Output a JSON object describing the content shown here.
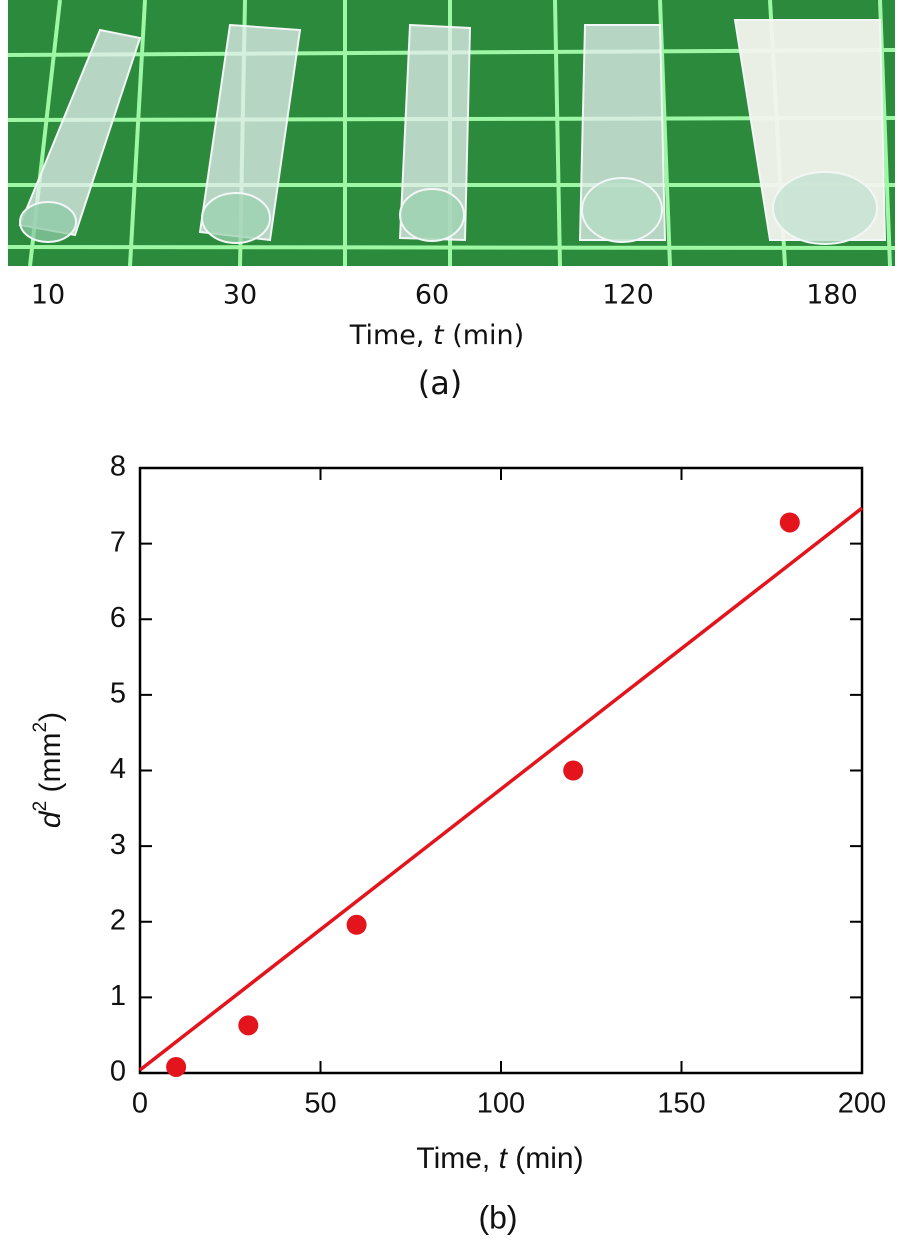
{
  "photo": {
    "labels": [
      "10",
      "30",
      "60",
      "120",
      "180"
    ],
    "x_label_parts": [
      "Time, ",
      "t",
      " (min)"
    ],
    "caption": "(a)"
  },
  "chart_data": {
    "type": "scatter",
    "x": [
      10,
      30,
      60,
      120,
      180
    ],
    "values": [
      0.08,
      0.63,
      1.96,
      4.0,
      7.28
    ],
    "color": "#e3141b",
    "fit_line": {
      "x": [
        0,
        200
      ],
      "values": [
        0.04,
        7.47
      ],
      "color": "#e3141b"
    },
    "xlim": [
      0,
      200
    ],
    "xticks": [
      0,
      50,
      100,
      150,
      200
    ],
    "ylim": [
      0,
      8
    ],
    "yticks": [
      0,
      1,
      2,
      3,
      4,
      5,
      6,
      7,
      8
    ],
    "x_label_parts": [
      "Time, ",
      "t",
      " (min)"
    ],
    "y_label_parts": [
      "d",
      "2",
      " (mm",
      "2",
      ")"
    ],
    "caption": "(b)"
  }
}
